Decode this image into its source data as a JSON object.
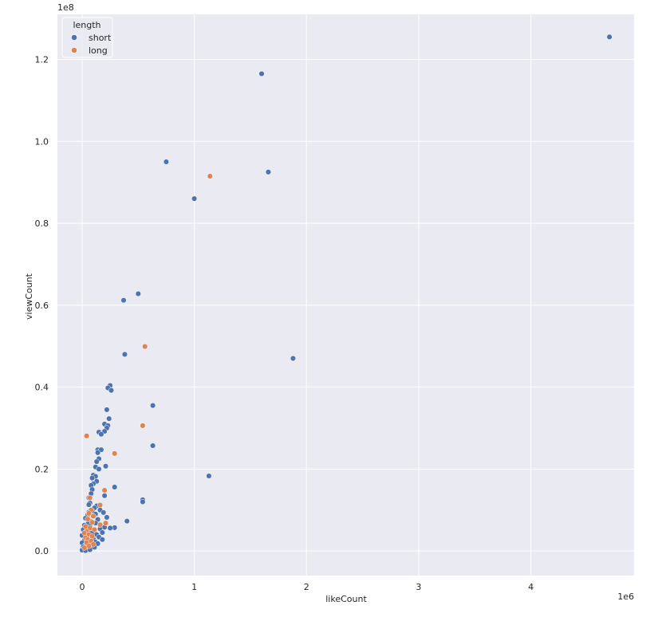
{
  "chart_data": {
    "type": "scatter",
    "title": "",
    "xlabel": "likeCount",
    "ylabel": "viewCount",
    "x_offset_label": "1e6",
    "y_offset_label": "1e8",
    "xlim": [
      -0.22,
      4.92
    ],
    "ylim": [
      -0.06,
      1.31
    ],
    "x_ticks": [
      0,
      1,
      2,
      3,
      4
    ],
    "x_tick_labels": [
      "0",
      "1",
      "2",
      "3",
      "4"
    ],
    "y_ticks": [
      0.0,
      0.2,
      0.4,
      0.6,
      0.8,
      1.0,
      1.2
    ],
    "y_tick_labels": [
      "0.0",
      "0.2",
      "0.4",
      "0.6",
      "0.8",
      "1.0",
      "1.2"
    ],
    "background": "#EAEAF2",
    "grid": true,
    "legend": {
      "title": "length",
      "placement": "top-left",
      "entries": [
        {
          "label": "short",
          "color": "#4C72B0"
        },
        {
          "label": "long",
          "color": "#DD8452"
        }
      ]
    },
    "series": [
      {
        "name": "short",
        "color": "#4C72B0",
        "points": [
          [
            4.7,
            1.255
          ],
          [
            1.6,
            1.165
          ],
          [
            1.66,
            0.925
          ],
          [
            0.75,
            0.95
          ],
          [
            1.0,
            0.86
          ],
          [
            0.5,
            0.628
          ],
          [
            0.37,
            0.612
          ],
          [
            0.38,
            0.48
          ],
          [
            1.88,
            0.47
          ],
          [
            0.25,
            0.404
          ],
          [
            0.23,
            0.398
          ],
          [
            0.26,
            0.392
          ],
          [
            0.63,
            0.355
          ],
          [
            0.22,
            0.345
          ],
          [
            0.24,
            0.323
          ],
          [
            0.2,
            0.31
          ],
          [
            0.23,
            0.306
          ],
          [
            0.22,
            0.3
          ],
          [
            0.2,
            0.292
          ],
          [
            0.15,
            0.29
          ],
          [
            0.17,
            0.285
          ],
          [
            0.63,
            0.257
          ],
          [
            0.14,
            0.247
          ],
          [
            0.17,
            0.247
          ],
          [
            0.14,
            0.24
          ],
          [
            0.15,
            0.225
          ],
          [
            0.13,
            0.218
          ],
          [
            0.12,
            0.205
          ],
          [
            0.21,
            0.207
          ],
          [
            0.15,
            0.2
          ],
          [
            1.13,
            0.183
          ],
          [
            0.1,
            0.185
          ],
          [
            0.12,
            0.182
          ],
          [
            0.09,
            0.178
          ],
          [
            0.13,
            0.17
          ],
          [
            0.1,
            0.164
          ],
          [
            0.08,
            0.16
          ],
          [
            0.29,
            0.156
          ],
          [
            0.09,
            0.15
          ],
          [
            0.08,
            0.14
          ],
          [
            0.2,
            0.135
          ],
          [
            0.06,
            0.13
          ],
          [
            0.54,
            0.125
          ],
          [
            0.54,
            0.12
          ],
          [
            0.07,
            0.117
          ],
          [
            0.06,
            0.113
          ],
          [
            0.13,
            0.11
          ],
          [
            0.11,
            0.105
          ],
          [
            0.16,
            0.1
          ],
          [
            0.09,
            0.098
          ],
          [
            0.06,
            0.095
          ],
          [
            0.19,
            0.094
          ],
          [
            0.12,
            0.09
          ],
          [
            0.05,
            0.088
          ],
          [
            0.1,
            0.085
          ],
          [
            0.22,
            0.082
          ],
          [
            0.03,
            0.08
          ],
          [
            0.14,
            0.077
          ],
          [
            0.4,
            0.073
          ],
          [
            0.08,
            0.072
          ],
          [
            0.12,
            0.068
          ],
          [
            0.05,
            0.066
          ],
          [
            0.02,
            0.063
          ],
          [
            0.07,
            0.06
          ],
          [
            0.2,
            0.058
          ],
          [
            0.29,
            0.057
          ],
          [
            0.25,
            0.056
          ],
          [
            0.16,
            0.054
          ],
          [
            0.01,
            0.052
          ],
          [
            0.11,
            0.05
          ],
          [
            0.06,
            0.048
          ],
          [
            0.03,
            0.046
          ],
          [
            0.18,
            0.045
          ],
          [
            0.09,
            0.044
          ],
          [
            0.02,
            0.042
          ],
          [
            0.13,
            0.04
          ],
          [
            0.0,
            0.038
          ],
          [
            0.07,
            0.036
          ],
          [
            0.15,
            0.034
          ],
          [
            0.04,
            0.032
          ],
          [
            0.1,
            0.03
          ],
          [
            0.18,
            0.028
          ],
          [
            0.02,
            0.026
          ],
          [
            0.06,
            0.025
          ],
          [
            0.12,
            0.022
          ],
          [
            0.0,
            0.02
          ],
          [
            0.08,
            0.02
          ],
          [
            0.14,
            0.018
          ],
          [
            0.03,
            0.015
          ],
          [
            0.05,
            0.013
          ],
          [
            0.09,
            0.012
          ],
          [
            0.01,
            0.01
          ],
          [
            0.11,
            0.009
          ],
          [
            0.04,
            0.007
          ],
          [
            0.06,
            0.005
          ],
          [
            0.02,
            0.004
          ],
          [
            0.0,
            0.002
          ],
          [
            0.03,
            0.001
          ],
          [
            0.07,
            0.003
          ]
        ]
      },
      {
        "name": "long",
        "color": "#DD8452",
        "points": [
          [
            1.14,
            0.915
          ],
          [
            0.56,
            0.499
          ],
          [
            0.54,
            0.306
          ],
          [
            0.04,
            0.281
          ],
          [
            0.29,
            0.238
          ],
          [
            0.2,
            0.148
          ],
          [
            0.07,
            0.13
          ],
          [
            0.16,
            0.112
          ],
          [
            0.08,
            0.1
          ],
          [
            0.06,
            0.092
          ],
          [
            0.1,
            0.085
          ],
          [
            0.05,
            0.078
          ],
          [
            0.09,
            0.07
          ],
          [
            0.21,
            0.068
          ],
          [
            0.16,
            0.064
          ],
          [
            0.03,
            0.06
          ],
          [
            0.07,
            0.056
          ],
          [
            0.11,
            0.052
          ],
          [
            0.04,
            0.048
          ],
          [
            0.02,
            0.044
          ],
          [
            0.06,
            0.04
          ],
          [
            0.09,
            0.036
          ],
          [
            0.03,
            0.032
          ],
          [
            0.05,
            0.028
          ],
          [
            0.08,
            0.024
          ],
          [
            0.04,
            0.02
          ],
          [
            0.1,
            0.016
          ],
          [
            0.06,
            0.012
          ],
          [
            0.02,
            0.008
          ]
        ]
      }
    ]
  }
}
